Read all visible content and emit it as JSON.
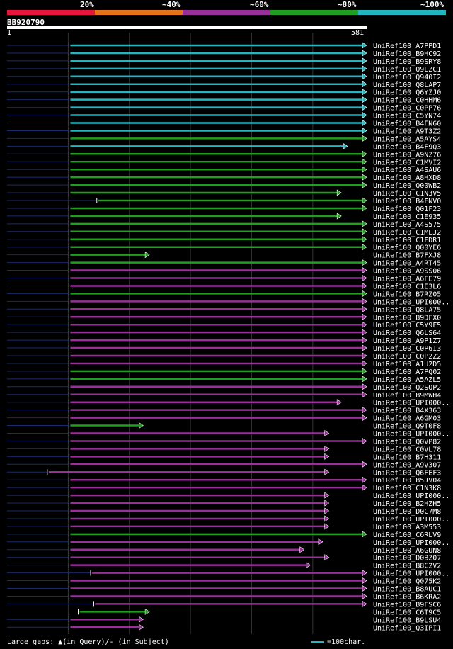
{
  "legend": {
    "labels": [
      "20%",
      "~40%",
      "~60%",
      "~80%",
      "~100%"
    ],
    "colors": [
      "#e8153a",
      "#e8741a",
      "#992f99",
      "#1f9e1f",
      "#22b6c0"
    ]
  },
  "query": {
    "id": "BB920790",
    "start": "1",
    "end": "581"
  },
  "footer": {
    "gap_text": "Large gaps: ▲(in Query)/- (in Subject)",
    "scale_text": "=100char.",
    "scale_color": "#22b6c0"
  },
  "chart_data": {
    "type": "alignment-overview",
    "query_length": 581,
    "identity_bins": [
      "20%",
      "~40%",
      "~60%",
      "~80%",
      "~100%"
    ],
    "hits": [
      {
        "name": "UniRef100_A7PPD1",
        "color": "c",
        "start": 100,
        "end": 581,
        "left_thin": true
      },
      {
        "name": "UniRef100_B9HC92",
        "color": "c",
        "start": 100,
        "end": 581,
        "left_thin": true
      },
      {
        "name": "UniRef100_B9SRY8",
        "color": "c",
        "start": 100,
        "end": 581,
        "left_thin": true
      },
      {
        "name": "UniRef100_Q9LZC1",
        "color": "c",
        "start": 100,
        "end": 581,
        "left_thin": true
      },
      {
        "name": "UniRef100_Q940I2",
        "color": "c",
        "start": 100,
        "end": 581,
        "left_thin": true
      },
      {
        "name": "UniRef100_Q8LAP7",
        "color": "c",
        "start": 100,
        "end": 581,
        "left_thin": true
      },
      {
        "name": "UniRef100_Q6YZJ0",
        "color": "c",
        "start": 100,
        "end": 581,
        "left_thin": true
      },
      {
        "name": "UniRef100_C0HHM6",
        "color": "c",
        "start": 100,
        "end": 581,
        "left_thin": true
      },
      {
        "name": "UniRef100_C0PP76",
        "color": "c",
        "start": 100,
        "end": 581,
        "left_thin": true
      },
      {
        "name": "UniRef100_C5YN74",
        "color": "c",
        "start": 100,
        "end": 581,
        "left_thin": true
      },
      {
        "name": "UniRef100_B4FN60",
        "color": "c",
        "start": 100,
        "end": 581,
        "left_thin": true
      },
      {
        "name": "UniRef100_A9T3Z2",
        "color": "c",
        "start": 100,
        "end": 581,
        "left_thin": true
      },
      {
        "name": "UniRef100_A5AYS4",
        "color": "g",
        "start": 100,
        "end": 581,
        "left_thin": true
      },
      {
        "name": "UniRef100_B4F9Q3",
        "color": "c",
        "start": 100,
        "end": 550,
        "left_thin": true
      },
      {
        "name": "UniRef100_A9NZ76",
        "color": "g",
        "start": 100,
        "end": 581,
        "left_thin": true
      },
      {
        "name": "UniRef100_C1MVI2",
        "color": "g",
        "start": 100,
        "end": 581,
        "left_thin": true
      },
      {
        "name": "UniRef100_A4SAU6",
        "color": "g",
        "start": 100,
        "end": 581,
        "left_thin": true
      },
      {
        "name": "UniRef100_A8HXD8",
        "color": "g",
        "start": 100,
        "end": 581,
        "left_thin": true
      },
      {
        "name": "UniRef100_Q00WB2",
        "color": "g",
        "start": 100,
        "end": 581,
        "left_thin": true
      },
      {
        "name": "UniRef100_C1N3V5",
        "color": "g",
        "start": 100,
        "end": 540,
        "left_thin": true
      },
      {
        "name": "UniRef100_B4FNV0",
        "color": "g",
        "start": 145,
        "end": 581,
        "left_thin": true
      },
      {
        "name": "UniRef100_Q01F23",
        "color": "g",
        "start": 100,
        "end": 581,
        "left_thin": true
      },
      {
        "name": "UniRef100_C1E935",
        "color": "g",
        "start": 100,
        "end": 540,
        "left_thin": true
      },
      {
        "name": "UniRef100_A4S575",
        "color": "g",
        "start": 100,
        "end": 581,
        "left_thin": true
      },
      {
        "name": "UniRef100_C1MLJ2",
        "color": "g",
        "start": 100,
        "end": 581,
        "left_thin": true
      },
      {
        "name": "UniRef100_C1FDR1",
        "color": "g",
        "start": 100,
        "end": 581,
        "left_thin": true
      },
      {
        "name": "UniRef100_Q00YE6",
        "color": "g",
        "start": 100,
        "end": 581,
        "left_thin": true
      },
      {
        "name": "UniRef100_B7FXJ8",
        "color": "g",
        "start": 100,
        "end": 230,
        "left_thin": true
      },
      {
        "name": "UniRef100_A4RT45",
        "color": "g",
        "start": 100,
        "end": 581,
        "left_thin": true
      },
      {
        "name": "UniRef100_A9SS06",
        "color": "m",
        "start": 100,
        "end": 581,
        "left_thin": true
      },
      {
        "name": "UniRef100_A6FE79",
        "color": "m",
        "start": 100,
        "end": 581,
        "left_thin": true
      },
      {
        "name": "UniRef100_C1E3L6",
        "color": "m",
        "start": 100,
        "end": 581,
        "left_thin": true
      },
      {
        "name": "UniRef100_B7RZ05",
        "color": "g",
        "start": 100,
        "end": 581,
        "left_thin": true
      },
      {
        "name": "UniRef100_UPI000..",
        "color": "m",
        "start": 100,
        "end": 581,
        "left_thin": true
      },
      {
        "name": "UniRef100_Q8LA75",
        "color": "m",
        "start": 100,
        "end": 581,
        "left_thin": true
      },
      {
        "name": "UniRef100_B9DFX0",
        "color": "m",
        "start": 100,
        "end": 581,
        "left_thin": true
      },
      {
        "name": "UniRef100_C5Y9F5",
        "color": "m",
        "start": 100,
        "end": 581,
        "left_thin": true
      },
      {
        "name": "UniRef100_Q6LS64",
        "color": "m",
        "start": 100,
        "end": 581,
        "left_thin": true
      },
      {
        "name": "UniRef100_A9P1Z7",
        "color": "m",
        "start": 100,
        "end": 581,
        "left_thin": true
      },
      {
        "name": "UniRef100_C0P6I3",
        "color": "m",
        "start": 100,
        "end": 581,
        "left_thin": true
      },
      {
        "name": "UniRef100_C0P2Z2",
        "color": "m",
        "start": 100,
        "end": 581,
        "left_thin": true
      },
      {
        "name": "UniRef100_A1U2D5",
        "color": "m",
        "start": 100,
        "end": 581,
        "left_thin": true
      },
      {
        "name": "UniRef100_A7PQ02",
        "color": "g",
        "start": 100,
        "end": 581,
        "left_thin": true
      },
      {
        "name": "UniRef100_A5AZL5",
        "color": "g",
        "start": 100,
        "end": 581,
        "left_thin": true
      },
      {
        "name": "UniRef100_Q2SQP2",
        "color": "m",
        "start": 100,
        "end": 581,
        "left_thin": true
      },
      {
        "name": "UniRef100_B9MWH4",
        "color": "m",
        "start": 100,
        "end": 581,
        "left_thin": true
      },
      {
        "name": "UniRef100_UPI000..",
        "color": "m",
        "start": 100,
        "end": 540,
        "left_thin": true
      },
      {
        "name": "UniRef100_B4X363",
        "color": "m",
        "start": 100,
        "end": 581,
        "left_thin": true
      },
      {
        "name": "UniRef100_A6GM03",
        "color": "m",
        "start": 100,
        "end": 581,
        "left_thin": true
      },
      {
        "name": "UniRef100_Q9T0F8",
        "color": "g",
        "start": 100,
        "end": 220,
        "left_thin": true
      },
      {
        "name": "UniRef100_UPI000..",
        "color": "m",
        "start": 100,
        "end": 520,
        "left_thin": true
      },
      {
        "name": "UniRef100_Q0VP82",
        "color": "m",
        "start": 100,
        "end": 581,
        "left_thin": true
      },
      {
        "name": "UniRef100_C0VL78",
        "color": "m",
        "start": 100,
        "end": 520,
        "left_thin": true
      },
      {
        "name": "UniRef100_B7H311",
        "color": "m",
        "start": 100,
        "end": 520,
        "left_thin": true
      },
      {
        "name": "UniRef100_A9V307",
        "color": "m",
        "start": 100,
        "end": 581,
        "left_thin": true
      },
      {
        "name": "UniRef100_Q6FEF3",
        "color": "m",
        "start": 65,
        "end": 520,
        "left_thin": true
      },
      {
        "name": "UniRef100_B5JV04",
        "color": "m",
        "start": 100,
        "end": 581,
        "left_thin": true
      },
      {
        "name": "UniRef100_C1N3K8",
        "color": "m",
        "start": 100,
        "end": 581,
        "left_thin": true
      },
      {
        "name": "UniRef100_UPI000..",
        "color": "m",
        "start": 100,
        "end": 520,
        "left_thin": true
      },
      {
        "name": "UniRef100_B2HZH5",
        "color": "m",
        "start": 100,
        "end": 520,
        "left_thin": true
      },
      {
        "name": "UniRef100_D0C7M8",
        "color": "m",
        "start": 100,
        "end": 520,
        "left_thin": true
      },
      {
        "name": "UniRef100_UPI000..",
        "color": "m",
        "start": 100,
        "end": 520,
        "left_thin": true
      },
      {
        "name": "UniRef100_A3M553",
        "color": "m",
        "start": 100,
        "end": 520,
        "left_thin": true
      },
      {
        "name": "UniRef100_C6RLV9",
        "color": "g",
        "start": 100,
        "end": 581,
        "left_thin": true
      },
      {
        "name": "UniRef100_UPI000..",
        "color": "m",
        "start": 100,
        "end": 510,
        "left_thin": true
      },
      {
        "name": "UniRef100_A6GUN8",
        "color": "m",
        "start": 100,
        "end": 480,
        "left_thin": true
      },
      {
        "name": "UniRef100_D0BZ07",
        "color": "m",
        "start": 100,
        "end": 520,
        "left_thin": true
      },
      {
        "name": "UniRef100_B8C2V2",
        "color": "m",
        "start": 100,
        "end": 490,
        "left_thin": true
      },
      {
        "name": "UniRef100_UPI000..",
        "color": "m",
        "start": 135,
        "end": 581,
        "left_thin": true
      },
      {
        "name": "UniRef100_Q075K2",
        "color": "m",
        "start": 100,
        "end": 581,
        "left_thin": true
      },
      {
        "name": "UniRef100_B8AUC1",
        "color": "m",
        "start": 100,
        "end": 581,
        "left_thin": true
      },
      {
        "name": "UniRef100_B6KRA2",
        "color": "m",
        "start": 100,
        "end": 581,
        "left_thin": true
      },
      {
        "name": "UniRef100_B9FSC6",
        "color": "m",
        "start": 140,
        "end": 581,
        "left_thin": true
      },
      {
        "name": "UniRef100_C6T9C5",
        "color": "g",
        "start": 115,
        "end": 230,
        "left_thin": false
      },
      {
        "name": "UniRef100_B9LSU4",
        "color": "m",
        "start": 100,
        "end": 220,
        "left_thin": true
      },
      {
        "name": "UniRef100_Q3IPI1",
        "color": "m",
        "start": 100,
        "end": 220,
        "left_thin": true
      }
    ]
  }
}
